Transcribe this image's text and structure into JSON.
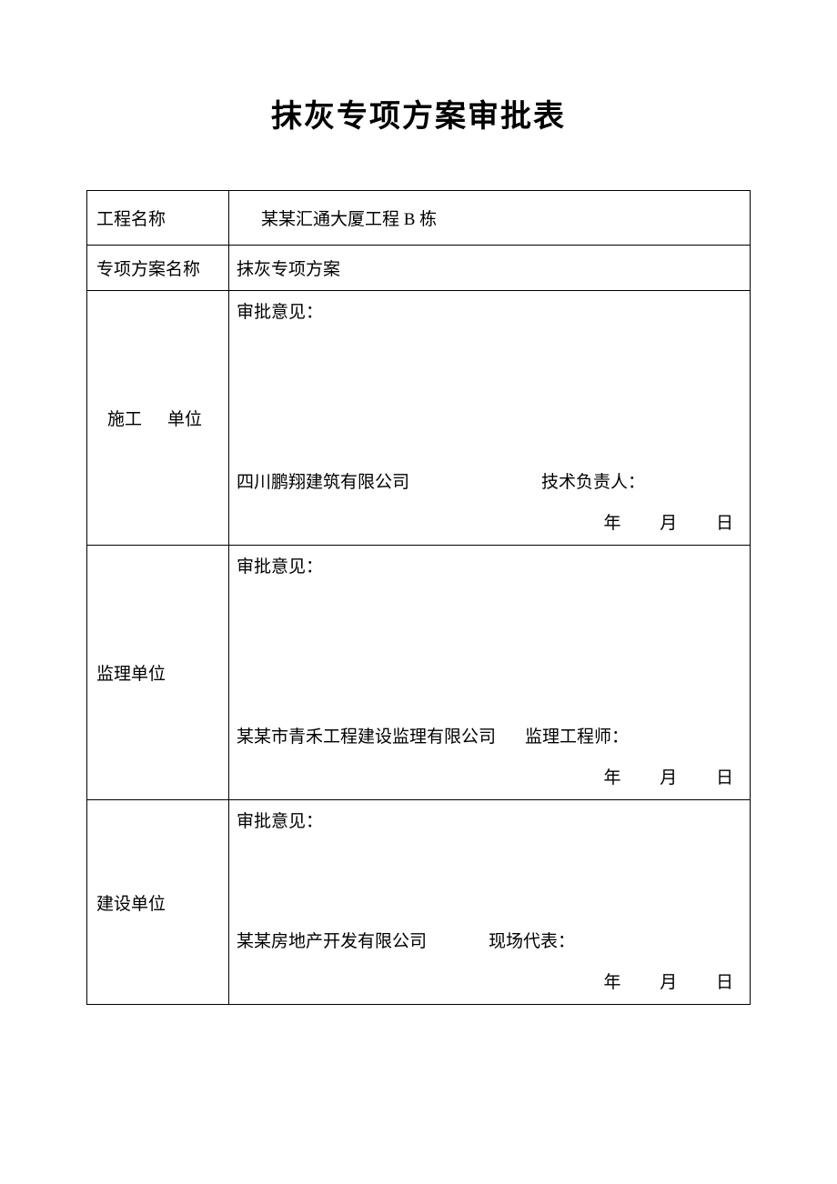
{
  "title": "抹灰专项方案审批表",
  "rows": {
    "project_name": {
      "label": "工程名称",
      "value": "某某汇通大厦工程 B 栋"
    },
    "plan_name": {
      "label": "专项方案名称",
      "value": "抹灰专项方案"
    }
  },
  "blocks": {
    "construction": {
      "label_part1": "施工",
      "label_part2": "单位",
      "opinion_label": "审批意见：",
      "company": "四川鹏翔建筑有限公司",
      "signer_label": "技术负责人：",
      "date": {
        "y": "年",
        "m": "月",
        "d": "日"
      }
    },
    "supervision": {
      "label": "监理单位",
      "opinion_label": "审批意见：",
      "company": "某某市青禾工程建设监理有限公司",
      "signer_label": "监理工程师：",
      "date": {
        "y": "年",
        "m": "月",
        "d": "日"
      }
    },
    "owner": {
      "label": "建设单位",
      "opinion_label": "审批意见：",
      "company": "某某房地产开发有限公司",
      "signer_label": "现场代表：",
      "date": {
        "y": "年",
        "m": "月",
        "d": "日"
      }
    }
  },
  "style": {
    "border_color": "#000000",
    "background_color": "#ffffff",
    "title_fontsize": 34,
    "body_fontsize": 19
  }
}
